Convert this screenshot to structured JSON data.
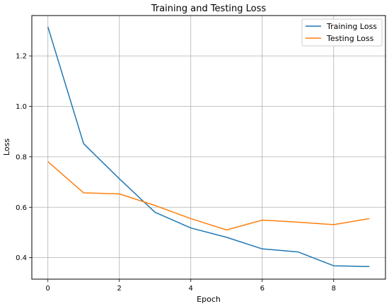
{
  "chart_data": {
    "type": "line",
    "title": "Training and Testing Loss",
    "xlabel": "Epoch",
    "ylabel": "Loss",
    "x": [
      0,
      1,
      2,
      3,
      4,
      5,
      6,
      7,
      8,
      9
    ],
    "xlim": [
      -0.45,
      9.45
    ],
    "ylim": [
      0.315,
      1.36
    ],
    "xticks": [
      0,
      2,
      4,
      6,
      8
    ],
    "yticks": [
      0.4,
      0.6,
      0.8,
      1.0,
      1.2
    ],
    "xtick_labels": [
      "0",
      "2",
      "4",
      "6",
      "8"
    ],
    "ytick_labels": [
      "0.4",
      "0.6",
      "0.8",
      "1.0",
      "1.2"
    ],
    "grid": true,
    "legend_position": "top-right",
    "series": [
      {
        "name": "Training Loss",
        "color": "#1f77b4",
        "values": [
          1.315,
          0.852,
          0.713,
          0.58,
          0.518,
          0.481,
          0.435,
          0.423,
          0.368,
          0.365
        ]
      },
      {
        "name": "Testing Loss",
        "color": "#ff7f0e",
        "values": [
          0.781,
          0.657,
          0.653,
          0.607,
          0.555,
          0.51,
          0.549,
          0.541,
          0.531,
          0.555
        ]
      }
    ]
  }
}
